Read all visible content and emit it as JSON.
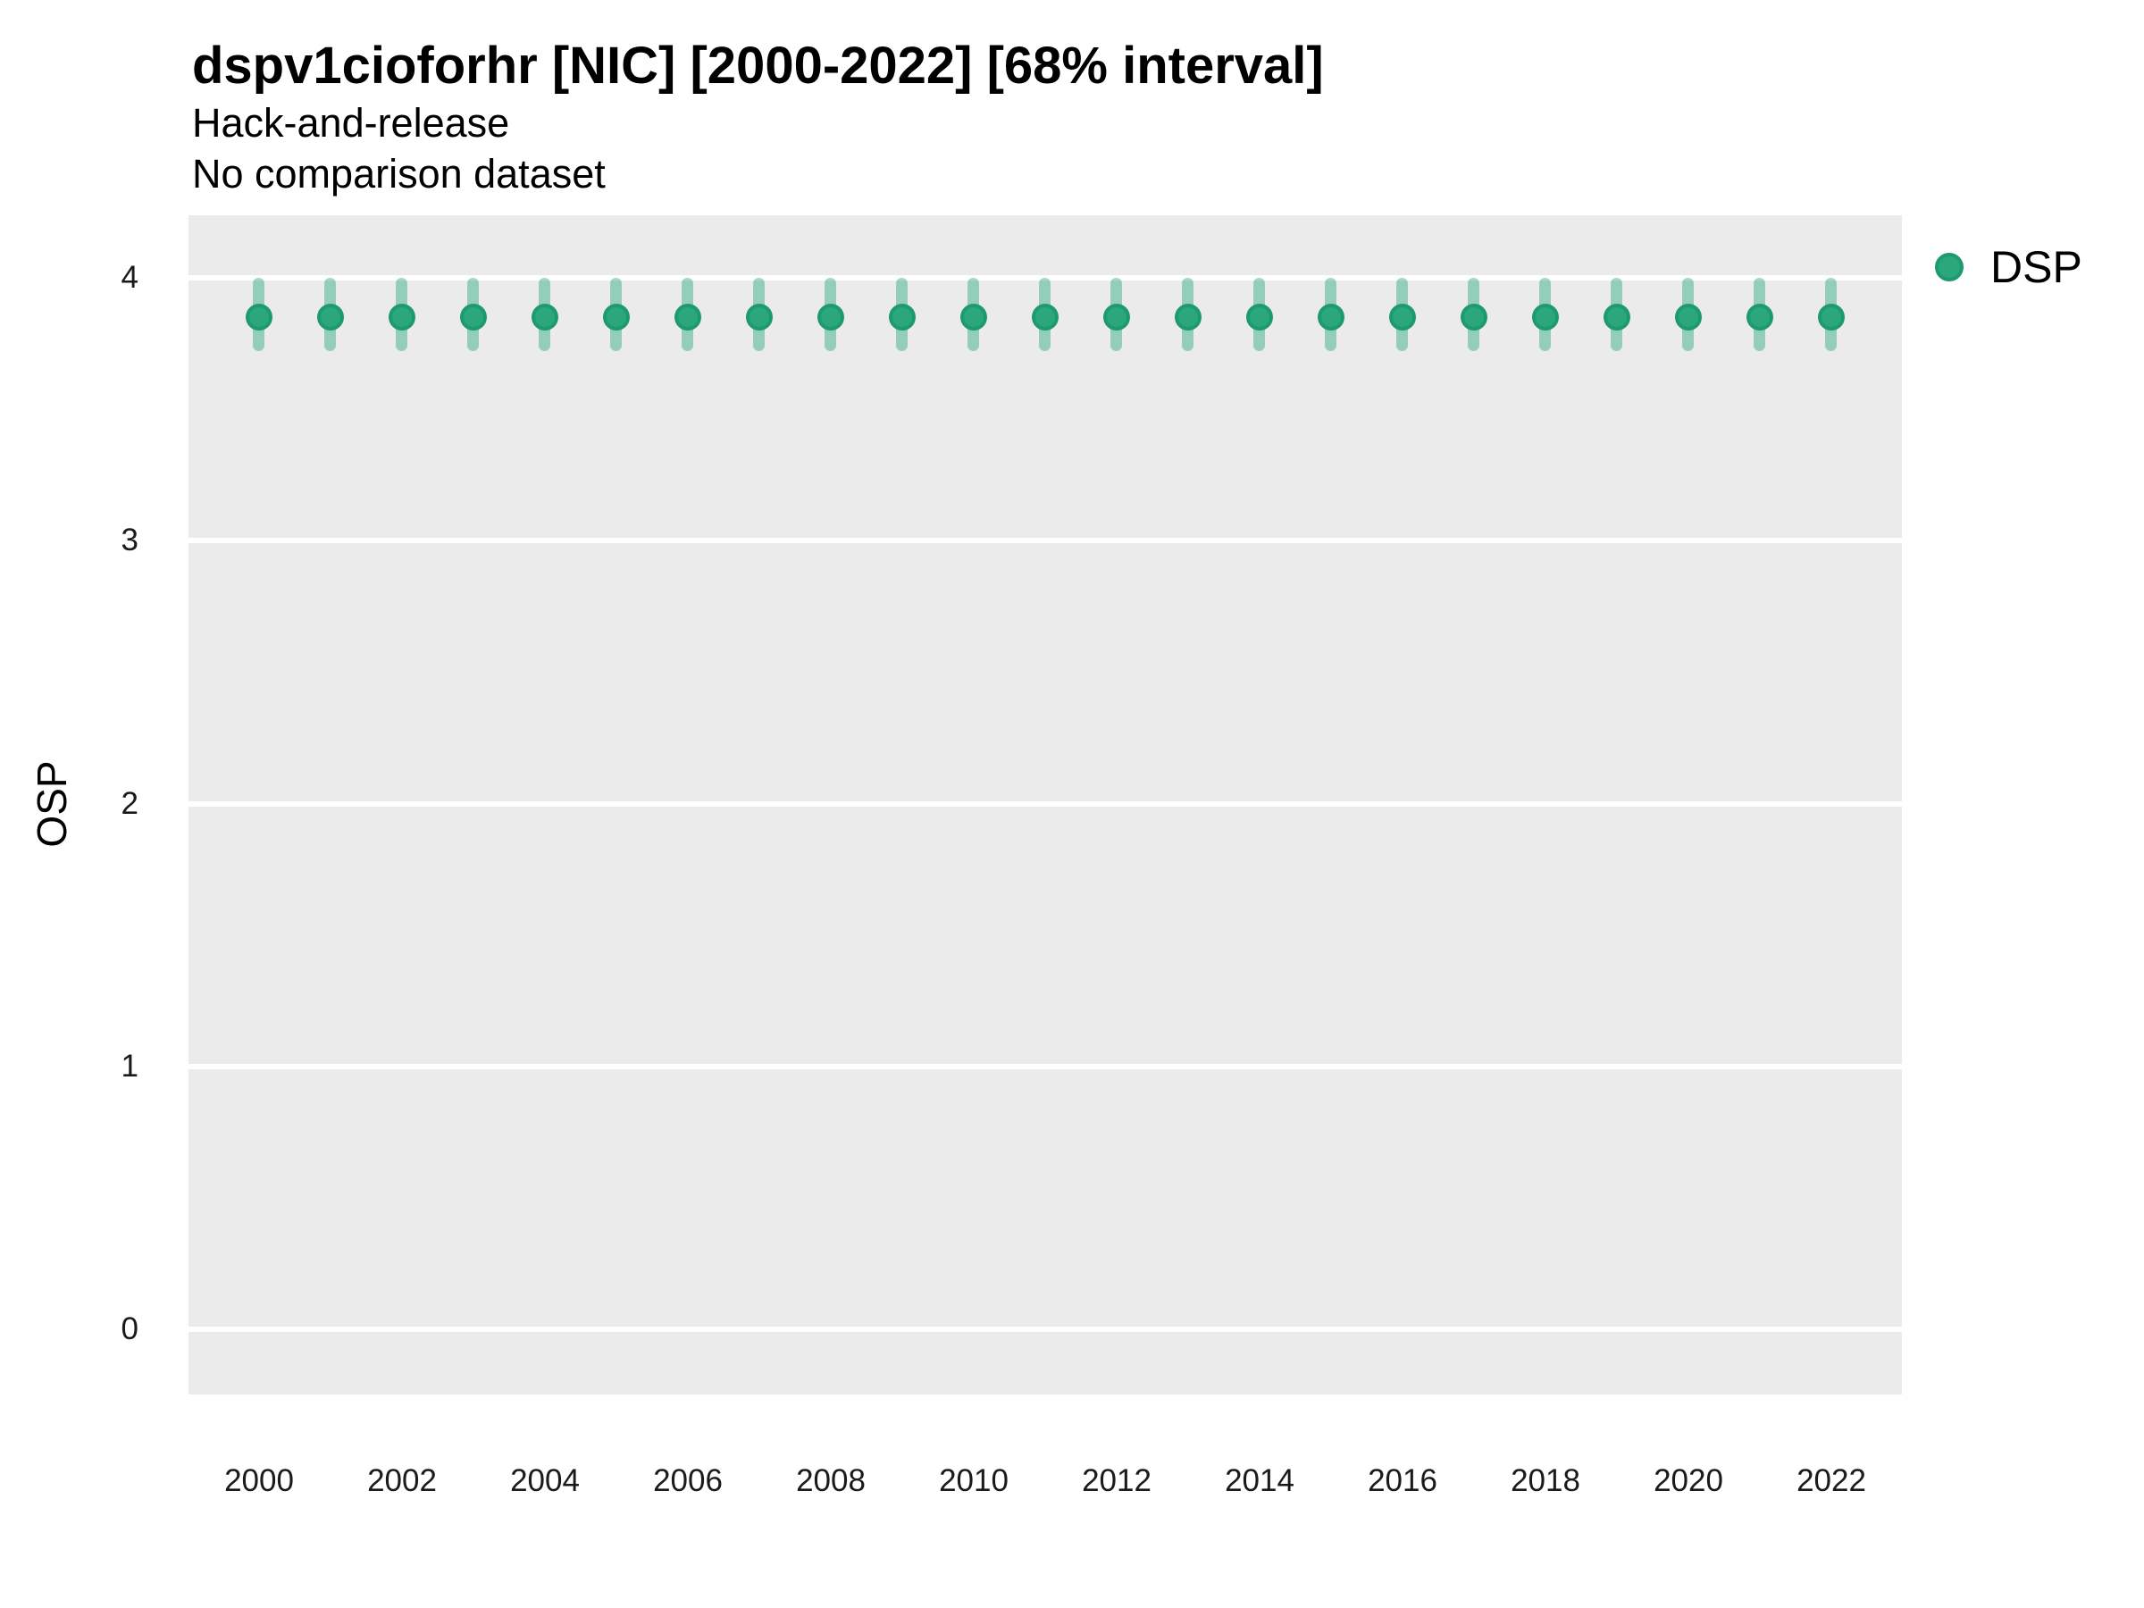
{
  "header": {
    "title": "dspv1cioforhr [NIC] [2000-2022] [68% interval]",
    "subtitle_line1": "Hack-and-release",
    "subtitle_line2": "No comparison dataset"
  },
  "legend": {
    "position": "right-top",
    "entries": [
      {
        "label": "DSP",
        "marker": "circle"
      }
    ]
  },
  "colors": {
    "point_fill": "#2aa87c",
    "point_stroke": "#1e9b6e",
    "interval_fill": "rgba(42,168,124,0.45)",
    "panel_background": "#ebebeb",
    "gridline": "#ffffff",
    "text": "#000000"
  },
  "chart_data": {
    "type": "scatter",
    "title": "dspv1cioforhr [NIC] [2000-2022] [68% interval]",
    "subtitle": "Hack-and-release / No comparison dataset",
    "xlabel": "",
    "ylabel": "OSP",
    "interval": "68%",
    "grid": "major-horizontal only, white on gray panel",
    "legend_position": "right-top",
    "x": [
      2000,
      2001,
      2002,
      2003,
      2004,
      2005,
      2006,
      2007,
      2008,
      2009,
      2010,
      2011,
      2012,
      2013,
      2014,
      2015,
      2016,
      2017,
      2018,
      2019,
      2020,
      2021,
      2022
    ],
    "series": [
      {
        "name": "DSP",
        "values": [
          3.85,
          3.85,
          3.85,
          3.85,
          3.85,
          3.85,
          3.85,
          3.85,
          3.85,
          3.85,
          3.85,
          3.85,
          3.85,
          3.85,
          3.85,
          3.85,
          3.85,
          3.85,
          3.85,
          3.85,
          3.85,
          3.85,
          3.85
        ],
        "lower": [
          3.72,
          3.72,
          3.72,
          3.72,
          3.72,
          3.72,
          3.72,
          3.72,
          3.72,
          3.72,
          3.72,
          3.72,
          3.72,
          3.72,
          3.72,
          3.72,
          3.72,
          3.72,
          3.72,
          3.72,
          3.72,
          3.72,
          3.72
        ],
        "upper": [
          4.0,
          4.0,
          4.0,
          4.0,
          4.0,
          4.0,
          4.0,
          4.0,
          4.0,
          4.0,
          4.0,
          4.0,
          4.0,
          4.0,
          4.0,
          4.0,
          4.0,
          4.0,
          4.0,
          4.0,
          4.0,
          4.0,
          4.0
        ]
      }
    ],
    "xticks": [
      2000,
      2002,
      2004,
      2006,
      2008,
      2010,
      2012,
      2014,
      2016,
      2018,
      2020,
      2022
    ],
    "yticks": [
      0,
      1,
      2,
      3,
      4
    ],
    "ylim": [
      -0.24,
      4.24
    ],
    "xlim": [
      1999,
      2023
    ]
  }
}
